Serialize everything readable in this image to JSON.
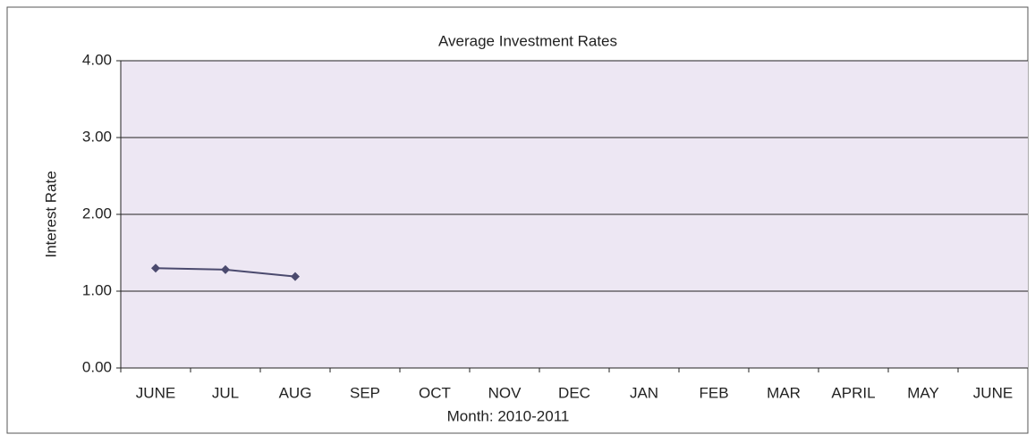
{
  "chart_data": {
    "type": "line",
    "title": "Average Investment Rates",
    "x_label": "Month: 2010-2011",
    "y_label": "Interest Rate",
    "categories": [
      "JUNE",
      "JUL",
      "AUG",
      "SEP",
      "OCT",
      "NOV",
      "DEC",
      "JAN",
      "FEB",
      "MAR",
      "APRIL",
      "MAY",
      "JUNE"
    ],
    "values": [
      1.3,
      1.28,
      1.19,
      null,
      null,
      null,
      null,
      null,
      null,
      null,
      null,
      null,
      null
    ],
    "color": "#4b4a6e",
    "ylim": [
      0,
      4
    ],
    "yticks": [
      {
        "value": 0,
        "label": "0.00"
      },
      {
        "value": 1,
        "label": "1.00"
      },
      {
        "value": 2,
        "label": "2.00"
      },
      {
        "value": 3,
        "label": "3.00"
      },
      {
        "value": 4,
        "label": "4.00"
      }
    ],
    "grid": true
  }
}
